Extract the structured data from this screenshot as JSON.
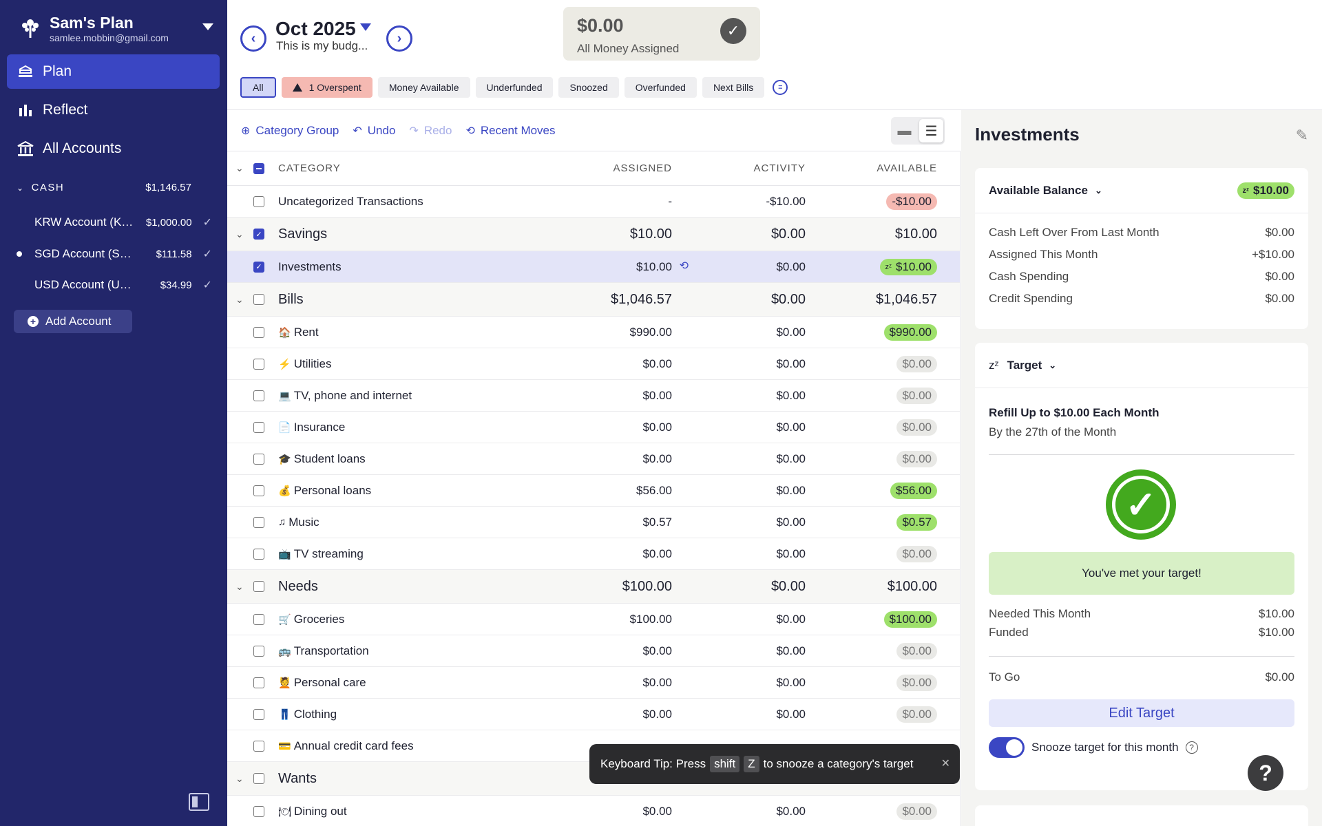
{
  "sidebar": {
    "plan_name": "Sam's Plan",
    "email": "samlee.mobbin@gmail.com",
    "nav": [
      {
        "label": "Plan",
        "icon": "plan-icon"
      },
      {
        "label": "Reflect",
        "icon": "bar-chart-icon"
      },
      {
        "label": "All Accounts",
        "icon": "bank-icon"
      }
    ],
    "cash_label": "CASH",
    "cash_total": "$1,146.57",
    "accounts": [
      {
        "name": "KRW Account (KRW)",
        "balance": "$1,000.00"
      },
      {
        "name": "SGD Account (SGD)",
        "balance": "$111.58"
      },
      {
        "name": "USD Account (USD)",
        "balance": "$34.99"
      }
    ],
    "add_account": "Add Account"
  },
  "header": {
    "month": "Oct 2025",
    "note": "This is my budg...",
    "assigned_amount": "$0.00",
    "assigned_label": "All Money Assigned"
  },
  "filters": [
    "All",
    "1 Overspent",
    "Money Available",
    "Underfunded",
    "Snoozed",
    "Overfunded",
    "Next Bills"
  ],
  "toolbar": {
    "category_group": "Category Group",
    "undo": "Undo",
    "redo": "Redo",
    "recent_moves": "Recent Moves"
  },
  "table": {
    "headers": {
      "category": "CATEGORY",
      "assigned": "ASSIGNED",
      "activity": "ACTIVITY",
      "available": "AVAILABLE"
    },
    "rows": [
      {
        "type": "cat",
        "name": "Uncategorized Transactions",
        "emoji": "",
        "assigned": "-",
        "activity": "-$10.00",
        "available": "-$10.00",
        "pill": "red"
      },
      {
        "type": "grp",
        "name": "Savings",
        "assigned": "$10.00",
        "activity": "$0.00",
        "available": "$10.00",
        "checked": true
      },
      {
        "type": "cat",
        "name": "Investments",
        "emoji": "",
        "assigned": "$10.00",
        "activity": "$0.00",
        "available": "$10.00",
        "pill": "green",
        "snoozed": true,
        "selected": true
      },
      {
        "type": "grp",
        "name": "Bills",
        "assigned": "$1,046.57",
        "activity": "$0.00",
        "available": "$1,046.57"
      },
      {
        "type": "cat",
        "name": "Rent",
        "emoji": "🏠",
        "assigned": "$990.00",
        "activity": "$0.00",
        "available": "$990.00",
        "pill": "green"
      },
      {
        "type": "cat",
        "name": "Utilities",
        "emoji": "⚡",
        "assigned": "$0.00",
        "activity": "$0.00",
        "available": "$0.00",
        "pill": "gray"
      },
      {
        "type": "cat",
        "name": "TV, phone and internet",
        "emoji": "💻",
        "assigned": "$0.00",
        "activity": "$0.00",
        "available": "$0.00",
        "pill": "gray"
      },
      {
        "type": "cat",
        "name": "Insurance",
        "emoji": "📄",
        "assigned": "$0.00",
        "activity": "$0.00",
        "available": "$0.00",
        "pill": "gray"
      },
      {
        "type": "cat",
        "name": "Student loans",
        "emoji": "🎓",
        "assigned": "$0.00",
        "activity": "$0.00",
        "available": "$0.00",
        "pill": "gray"
      },
      {
        "type": "cat",
        "name": "Personal loans",
        "emoji": "💰",
        "assigned": "$56.00",
        "activity": "$0.00",
        "available": "$56.00",
        "pill": "green"
      },
      {
        "type": "cat",
        "name": "Music",
        "emoji": "♫",
        "assigned": "$0.57",
        "activity": "$0.00",
        "available": "$0.57",
        "pill": "green"
      },
      {
        "type": "cat",
        "name": "TV streaming",
        "emoji": "📺",
        "assigned": "$0.00",
        "activity": "$0.00",
        "available": "$0.00",
        "pill": "gray"
      },
      {
        "type": "grp",
        "name": "Needs",
        "assigned": "$100.00",
        "activity": "$0.00",
        "available": "$100.00"
      },
      {
        "type": "cat",
        "name": "Groceries",
        "emoji": "🛒",
        "assigned": "$100.00",
        "activity": "$0.00",
        "available": "$100.00",
        "pill": "green"
      },
      {
        "type": "cat",
        "name": "Transportation",
        "emoji": "🚌",
        "assigned": "$0.00",
        "activity": "$0.00",
        "available": "$0.00",
        "pill": "gray"
      },
      {
        "type": "cat",
        "name": "Personal care",
        "emoji": "💆",
        "assigned": "$0.00",
        "activity": "$0.00",
        "available": "$0.00",
        "pill": "gray"
      },
      {
        "type": "cat",
        "name": "Clothing",
        "emoji": "👖",
        "assigned": "$0.00",
        "activity": "$0.00",
        "available": "$0.00",
        "pill": "gray"
      },
      {
        "type": "cat",
        "name": "Annual credit card fees",
        "emoji": "💳",
        "assigned": "",
        "activity": "",
        "available": "",
        "pill": "none"
      },
      {
        "type": "grp",
        "name": "Wants",
        "assigned": "",
        "activity": "",
        "available": ""
      },
      {
        "type": "cat",
        "name": "Dining out",
        "emoji": "🍽",
        "assigned": "$0.00",
        "activity": "$0.00",
        "available": "$0.00",
        "pill": "gray"
      }
    ]
  },
  "toast": {
    "prefix": "Keyboard Tip: Press",
    "key1": "shift",
    "key2": "Z",
    "suffix": "to snooze a category's target"
  },
  "panel": {
    "title": "Investments",
    "balance_label": "Available Balance",
    "balance_value": "$10.00",
    "balance_rows": [
      {
        "label": "Cash Left Over From Last Month",
        "value": "$0.00"
      },
      {
        "label": "Assigned This Month",
        "value": "+$10.00"
      },
      {
        "label": "Cash Spending",
        "value": "$0.00"
      },
      {
        "label": "Credit Spending",
        "value": "$0.00"
      }
    ],
    "target_label": "Target",
    "target_title": "Refill Up to $10.00 Each Month",
    "target_sub": "By the 27th of the Month",
    "met_text": "You've met your target!",
    "needed_label": "Needed This Month",
    "needed_value": "$10.00",
    "funded_label": "Funded",
    "funded_value": "$10.00",
    "togo_label": "To Go",
    "togo_value": "$0.00",
    "edit_target": "Edit Target",
    "snooze_label": "Snooze target for this month"
  }
}
